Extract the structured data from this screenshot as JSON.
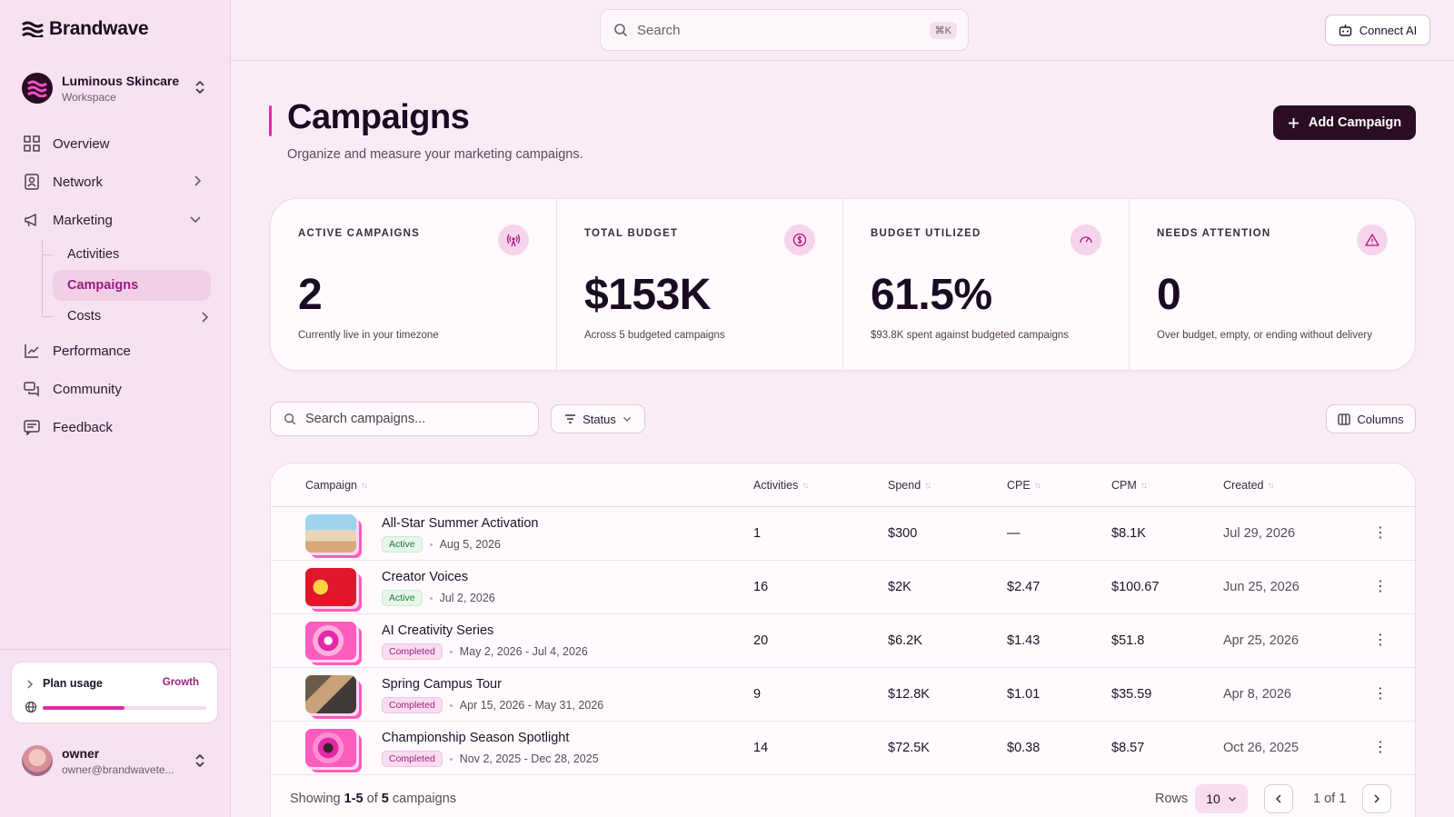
{
  "app": {
    "brand": "Brandwave"
  },
  "workspace": {
    "name": "Luminous Skincare",
    "type": "Workspace"
  },
  "nav": {
    "overview": "Overview",
    "network": "Network",
    "marketing": "Marketing",
    "activities": "Activities",
    "campaigns": "Campaigns",
    "costs": "Costs",
    "performance": "Performance",
    "community": "Community",
    "feedback": "Feedback"
  },
  "plan": {
    "title": "Plan usage",
    "tier": "Growth",
    "usage_fraction": 0.5
  },
  "user": {
    "name": "owner",
    "email": "owner@brandwavete..."
  },
  "topbar": {
    "search_placeholder": "Search",
    "shortcut": "⌘K",
    "connect_label": "Connect AI"
  },
  "page": {
    "title": "Campaigns",
    "subtitle": "Organize and measure your marketing campaigns.",
    "add_label": "Add Campaign"
  },
  "stats": [
    {
      "label": "ACTIVE CAMPAIGNS",
      "value": "2",
      "note": "Currently live in your timezone",
      "icon": "broadcast-icon"
    },
    {
      "label": "TOTAL BUDGET",
      "value": "$153K",
      "note": "Across 5 budgeted campaigns",
      "icon": "dollar-icon"
    },
    {
      "label": "BUDGET UTILIZED",
      "value": "61.5%",
      "note": "$93.8K spent against budgeted campaigns",
      "icon": "gauge-icon"
    },
    {
      "label": "NEEDS ATTENTION",
      "value": "0",
      "note": "Over budget, empty, or ending without delivery",
      "icon": "warning-icon"
    }
  ],
  "filters": {
    "search_placeholder": "Search campaigns...",
    "status_label": "Status",
    "columns_label": "Columns"
  },
  "table": {
    "headers": {
      "campaign": "Campaign",
      "activities": "Activities",
      "spend": "Spend",
      "cpe": "CPE",
      "cpm": "CPM",
      "created": "Created"
    },
    "rows": [
      {
        "name": "All-Star Summer Activation",
        "status": "Active",
        "dates": "Aug 5, 2026",
        "activities": "1",
        "spend": "$300",
        "cpe": "—",
        "cpm": "$8.1K",
        "created": "Jul 29, 2026"
      },
      {
        "name": "Creator Voices",
        "status": "Active",
        "dates": "Jul 2, 2026",
        "activities": "16",
        "spend": "$2K",
        "cpe": "$2.47",
        "cpm": "$100.67",
        "created": "Jun 25, 2026"
      },
      {
        "name": "AI Creativity Series",
        "status": "Completed",
        "dates": "May 2, 2026 - Jul 4, 2026",
        "activities": "20",
        "spend": "$6.2K",
        "cpe": "$1.43",
        "cpm": "$51.8",
        "created": "Apr 25, 2026"
      },
      {
        "name": "Spring Campus Tour",
        "status": "Completed",
        "dates": "Apr 15, 2026 - May 31, 2026",
        "activities": "9",
        "spend": "$12.8K",
        "cpe": "$1.01",
        "cpm": "$35.59",
        "created": "Apr 8, 2026"
      },
      {
        "name": "Championship Season Spotlight",
        "status": "Completed",
        "dates": "Nov 2, 2025 - Dec 28, 2025",
        "activities": "14",
        "spend": "$72.5K",
        "cpe": "$0.38",
        "cpm": "$8.57",
        "created": "Oct 26, 2025"
      }
    ],
    "footer": {
      "showing_prefix": "Showing",
      "range": "1-5",
      "of": "of",
      "total": "5",
      "suffix": "campaigns",
      "rows_label": "Rows",
      "rows_value": "10",
      "page_info": "1 of 1"
    }
  },
  "colors": {
    "accent": "#e22aa9",
    "dark": "#2a0d24",
    "background": "#f9ecf6"
  }
}
